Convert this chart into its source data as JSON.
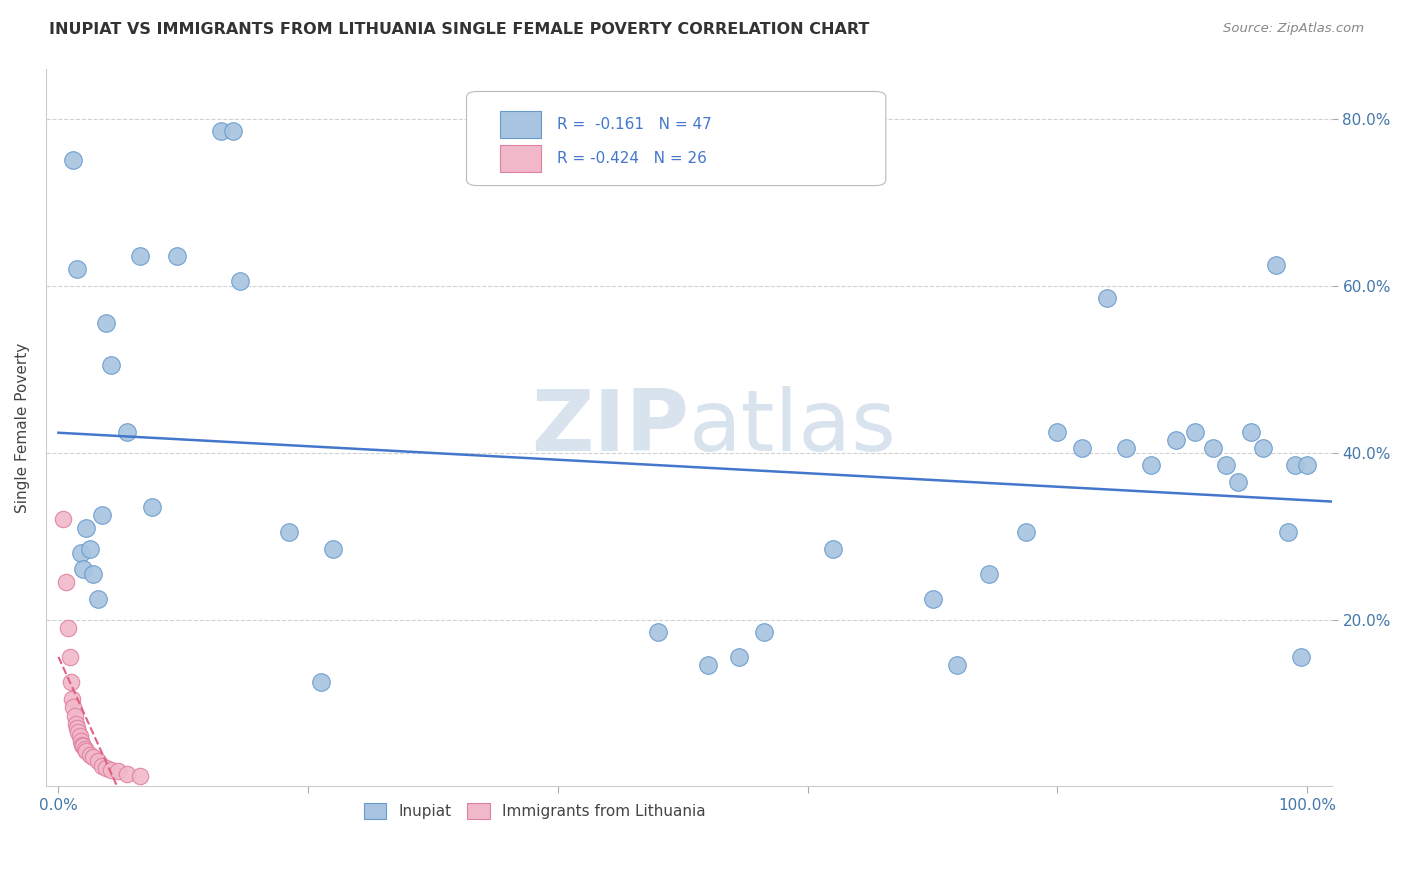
{
  "title": "INUPIAT VS IMMIGRANTS FROM LITHUANIA SINGLE FEMALE POVERTY CORRELATION CHART",
  "source": "Source: ZipAtlas.com",
  "ylabel": "Single Female Poverty",
  "legend_labels": [
    "Inupiat",
    "Immigrants from Lithuania"
  ],
  "blue_scatter": "#a8c4e0",
  "pink_scatter": "#f0b8c8",
  "blue_edge": "#6699cc",
  "pink_edge": "#e080a0",
  "trend_blue": "#4477cc",
  "trend_pink": "#e06080",
  "inupiat_x": [
    0.012,
    0.015,
    0.018,
    0.02,
    0.022,
    0.025,
    0.028,
    0.032,
    0.035,
    0.038,
    0.042,
    0.055,
    0.065,
    0.075,
    0.095,
    0.13,
    0.14,
    0.145,
    0.185,
    0.21,
    0.22,
    0.48,
    0.52,
    0.545,
    0.565,
    0.62,
    0.7,
    0.72,
    0.745,
    0.775,
    0.8,
    0.82,
    0.84,
    0.855,
    0.875,
    0.895,
    0.91,
    0.925,
    0.935,
    0.945,
    0.955,
    0.965,
    0.975,
    0.985,
    0.99,
    0.995,
    1.0
  ],
  "inupiat_y": [
    0.75,
    0.62,
    0.28,
    0.26,
    0.31,
    0.285,
    0.255,
    0.225,
    0.325,
    0.555,
    0.505,
    0.425,
    0.635,
    0.335,
    0.635,
    0.785,
    0.785,
    0.605,
    0.305,
    0.125,
    0.285,
    0.185,
    0.145,
    0.155,
    0.185,
    0.285,
    0.225,
    0.145,
    0.255,
    0.305,
    0.425,
    0.405,
    0.585,
    0.405,
    0.385,
    0.415,
    0.425,
    0.405,
    0.385,
    0.365,
    0.425,
    0.405,
    0.625,
    0.305,
    0.385,
    0.155,
    0.385
  ],
  "lithuania_x": [
    0.004,
    0.006,
    0.008,
    0.009,
    0.01,
    0.011,
    0.012,
    0.013,
    0.014,
    0.015,
    0.016,
    0.017,
    0.018,
    0.019,
    0.02,
    0.021,
    0.022,
    0.025,
    0.028,
    0.032,
    0.035,
    0.038,
    0.042,
    0.048,
    0.055,
    0.065
  ],
  "lithuania_y": [
    0.32,
    0.245,
    0.19,
    0.155,
    0.125,
    0.105,
    0.095,
    0.085,
    0.075,
    0.07,
    0.065,
    0.06,
    0.055,
    0.05,
    0.048,
    0.045,
    0.042,
    0.038,
    0.035,
    0.03,
    0.025,
    0.022,
    0.02,
    0.018,
    0.015,
    0.012
  ],
  "xlim": [
    -0.01,
    1.02
  ],
  "ylim": [
    0.0,
    0.86
  ],
  "ytick_vals": [
    0.2,
    0.4,
    0.6,
    0.8
  ],
  "xtick_vals": [
    0.0,
    0.2,
    0.4,
    0.6,
    0.8,
    1.0
  ],
  "background_color": "#ffffff",
  "grid_color": "#cccccc",
  "watermark_text": "ZIPatlas",
  "watermark_color": "#c8d8e8"
}
